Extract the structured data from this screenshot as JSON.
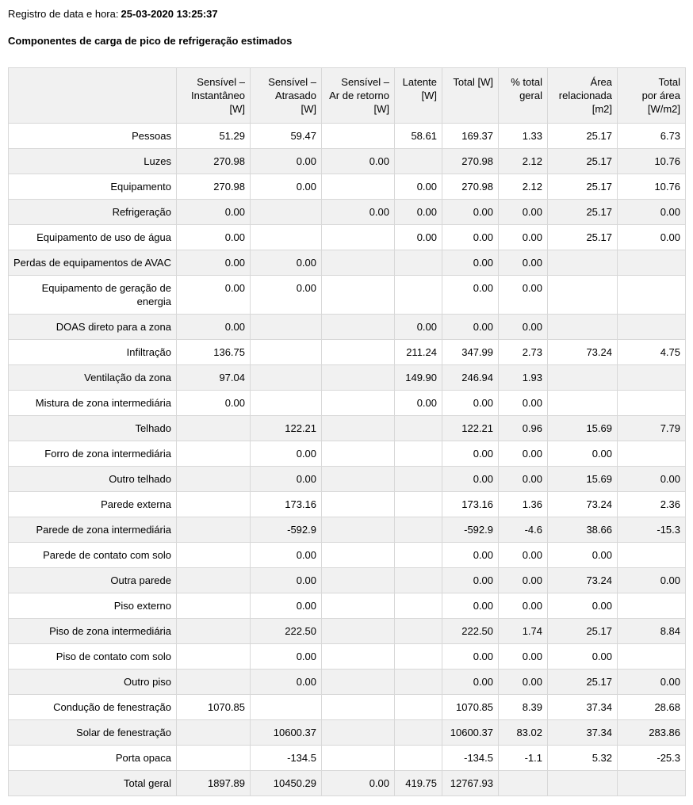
{
  "header": {
    "timestamp_label": "Registro de data e hora:",
    "timestamp_value": "25-03-2020 13:25:37",
    "table_title": "Componentes de carga de pico de refrigeração estimados"
  },
  "table": {
    "column_headers": [
      [
        ""
      ],
      [
        "Sensível –",
        "Instantâneo",
        "[W]"
      ],
      [
        "Sensível –",
        "Atrasado",
        "[W]"
      ],
      [
        "Sensível –",
        "Ar de retorno",
        "[W]"
      ],
      [
        "Latente",
        "[W]"
      ],
      [
        "Total [W]"
      ],
      [
        "% total",
        "geral"
      ],
      [
        "Área",
        "relacionada",
        "[m2]"
      ],
      [
        "Total",
        "por área",
        "[W/m2]"
      ]
    ],
    "rows": [
      {
        "label": "Pessoas",
        "values": [
          "51.29",
          "59.47",
          "",
          "58.61",
          "169.37",
          "1.33",
          "25.17",
          "6.73"
        ]
      },
      {
        "label": "Luzes",
        "values": [
          "270.98",
          "0.00",
          "0.00",
          "",
          "270.98",
          "2.12",
          "25.17",
          "10.76"
        ]
      },
      {
        "label": "Equipamento",
        "values": [
          "270.98",
          "0.00",
          "",
          "0.00",
          "270.98",
          "2.12",
          "25.17",
          "10.76"
        ]
      },
      {
        "label": "Refrigeração",
        "values": [
          "0.00",
          "",
          "0.00",
          "0.00",
          "0.00",
          "0.00",
          "25.17",
          "0.00"
        ]
      },
      {
        "label": "Equipamento de uso de água",
        "values": [
          "0.00",
          "",
          "",
          "0.00",
          "0.00",
          "0.00",
          "25.17",
          "0.00"
        ]
      },
      {
        "label": "Perdas de equipamentos de AVAC",
        "values": [
          "0.00",
          "0.00",
          "",
          "",
          "0.00",
          "0.00",
          "",
          ""
        ]
      },
      {
        "label": "Equipamento de geração de energia",
        "values": [
          "0.00",
          "0.00",
          "",
          "",
          "0.00",
          "0.00",
          "",
          ""
        ]
      },
      {
        "label": "DOAS direto para a zona",
        "values": [
          "0.00",
          "",
          "",
          "0.00",
          "0.00",
          "0.00",
          "",
          ""
        ]
      },
      {
        "label": "Infiltração",
        "values": [
          "136.75",
          "",
          "",
          "211.24",
          "347.99",
          "2.73",
          "73.24",
          "4.75"
        ]
      },
      {
        "label": "Ventilação da zona",
        "values": [
          "97.04",
          "",
          "",
          "149.90",
          "246.94",
          "1.93",
          "",
          ""
        ]
      },
      {
        "label": "Mistura de zona intermediária",
        "values": [
          "0.00",
          "",
          "",
          "0.00",
          "0.00",
          "0.00",
          "",
          ""
        ]
      },
      {
        "label": "Telhado",
        "values": [
          "",
          "122.21",
          "",
          "",
          "122.21",
          "0.96",
          "15.69",
          "7.79"
        ]
      },
      {
        "label": "Forro de zona intermediária",
        "values": [
          "",
          "0.00",
          "",
          "",
          "0.00",
          "0.00",
          "0.00",
          ""
        ]
      },
      {
        "label": "Outro telhado",
        "values": [
          "",
          "0.00",
          "",
          "",
          "0.00",
          "0.00",
          "15.69",
          "0.00"
        ]
      },
      {
        "label": "Parede externa",
        "values": [
          "",
          "173.16",
          "",
          "",
          "173.16",
          "1.36",
          "73.24",
          "2.36"
        ]
      },
      {
        "label": "Parede de zona intermediária",
        "values": [
          "",
          "-592.9",
          "",
          "",
          "-592.9",
          "-4.6",
          "38.66",
          "-15.3"
        ]
      },
      {
        "label": "Parede de contato com solo",
        "values": [
          "",
          "0.00",
          "",
          "",
          "0.00",
          "0.00",
          "0.00",
          ""
        ]
      },
      {
        "label": "Outra parede",
        "values": [
          "",
          "0.00",
          "",
          "",
          "0.00",
          "0.00",
          "73.24",
          "0.00"
        ]
      },
      {
        "label": "Piso externo",
        "values": [
          "",
          "0.00",
          "",
          "",
          "0.00",
          "0.00",
          "0.00",
          ""
        ]
      },
      {
        "label": "Piso de zona intermediária",
        "values": [
          "",
          "222.50",
          "",
          "",
          "222.50",
          "1.74",
          "25.17",
          "8.84"
        ]
      },
      {
        "label": "Piso de contato com solo",
        "values": [
          "",
          "0.00",
          "",
          "",
          "0.00",
          "0.00",
          "0.00",
          ""
        ]
      },
      {
        "label": "Outro piso",
        "values": [
          "",
          "0.00",
          "",
          "",
          "0.00",
          "0.00",
          "25.17",
          "0.00"
        ]
      },
      {
        "label": "Condução de fenestração",
        "values": [
          "1070.85",
          "",
          "",
          "",
          "1070.85",
          "8.39",
          "37.34",
          "28.68"
        ]
      },
      {
        "label": "Solar de fenestração",
        "values": [
          "",
          "10600.37",
          "",
          "",
          "10600.37",
          "83.02",
          "37.34",
          "283.86"
        ]
      },
      {
        "label": "Porta opaca",
        "values": [
          "",
          "-134.5",
          "",
          "",
          "-134.5",
          "-1.1",
          "5.32",
          "-25.3"
        ]
      },
      {
        "label": "Total geral",
        "values": [
          "1897.89",
          "10450.29",
          "0.00",
          "419.75",
          "12767.93",
          "",
          "",
          ""
        ]
      }
    ]
  },
  "colors": {
    "stripe_background": "#f1f1f1",
    "row_background": "#ffffff",
    "border": "#d8d8d8",
    "text": "#000000"
  }
}
